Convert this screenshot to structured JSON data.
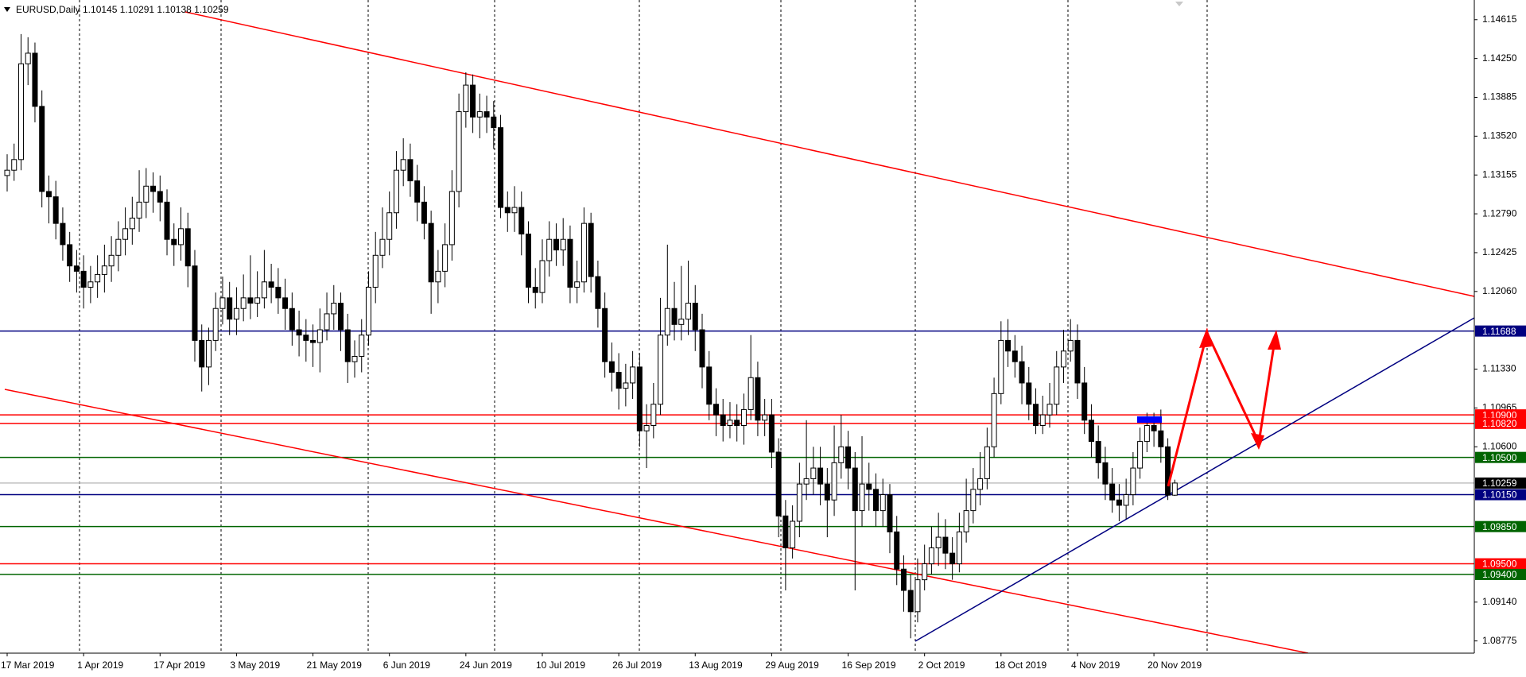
{
  "chart_data": {
    "type": "candlestick",
    "title": "EURUSD,Daily  1.10145 1.10291 1.10138 1.10259",
    "categories": [
      "17 Mar 2019",
      null,
      null,
      null,
      null,
      null,
      null,
      null,
      null,
      null,
      null,
      "1 Apr 2019",
      null,
      null,
      null,
      null,
      null,
      null,
      null,
      null,
      null,
      null,
      "17 Apr 2019",
      null,
      null,
      null,
      null,
      null,
      null,
      null,
      null,
      null,
      null,
      "3 May 2019",
      null,
      null,
      null,
      null,
      null,
      null,
      null,
      null,
      null,
      null,
      "21 May 2019",
      null,
      null,
      null,
      null,
      null,
      null,
      null,
      null,
      null,
      null,
      "6 Jun 2019",
      null,
      null,
      null,
      null,
      null,
      null,
      null,
      null,
      null,
      null,
      "24 Jun 2019",
      null,
      null,
      null,
      null,
      null,
      null,
      null,
      null,
      null,
      null,
      "10 Jul 2019",
      null,
      null,
      null,
      null,
      null,
      null,
      null,
      null,
      null,
      null,
      "26 Jul 2019",
      null,
      null,
      null,
      null,
      null,
      null,
      null,
      null,
      null,
      null,
      "13 Aug 2019",
      null,
      null,
      null,
      null,
      null,
      null,
      null,
      null,
      null,
      null,
      "29 Aug 2019",
      null,
      null,
      null,
      null,
      null,
      null,
      null,
      null,
      null,
      null,
      "16 Sep 2019",
      null,
      null,
      null,
      null,
      null,
      null,
      null,
      null,
      null,
      null,
      "2 Oct 2019",
      null,
      null,
      null,
      null,
      null,
      null,
      null,
      null,
      null,
      null,
      "18 Oct 2019",
      null,
      null,
      null,
      null,
      null,
      null,
      null,
      null,
      null,
      null,
      "4 Nov 2019",
      null,
      null,
      null,
      null,
      null,
      null,
      null,
      null,
      null,
      null,
      "20 Nov 2019",
      null,
      null,
      null
    ],
    "open": [
      1.1315,
      1.132,
      1.133,
      1.142,
      1.143,
      1.138,
      1.13,
      1.1295,
      1.127,
      1.125,
      1.123,
      1.1225,
      1.121,
      1.1215,
      1.1222,
      1.123,
      1.124,
      1.1255,
      1.1265,
      1.1275,
      1.129,
      1.1305,
      1.13,
      1.129,
      1.1255,
      1.125,
      1.1265,
      1.123,
      1.116,
      1.1135,
      1.116,
      1.119,
      1.12,
      1.118,
      1.119,
      1.12,
      1.1195,
      1.12,
      1.1215,
      1.121,
      1.12,
      1.119,
      1.117,
      1.1165,
      1.116,
      1.1158,
      1.117,
      1.1185,
      1.1195,
      1.117,
      1.114,
      1.1145,
      1.1165,
      1.121,
      1.124,
      1.1255,
      1.128,
      1.132,
      1.133,
      1.131,
      1.129,
      1.127,
      1.1215,
      1.1225,
      1.125,
      1.13,
      1.1375,
      1.14,
      1.137,
      1.1375,
      1.137,
      1.136,
      1.1285,
      1.128,
      1.1285,
      1.126,
      1.121,
      1.1205,
      1.1235,
      1.1255,
      1.1245,
      1.1255,
      1.121,
      1.1215,
      1.127,
      1.122,
      1.119,
      1.114,
      1.113,
      1.1115,
      1.112,
      1.1135,
      1.1075,
      1.108,
      1.11,
      1.1165,
      1.119,
      1.1175,
      1.118,
      1.1195,
      1.117,
      1.1135,
      1.11,
      1.109,
      1.108,
      1.1085,
      1.108,
      1.1095,
      1.1125,
      1.1085,
      1.109,
      1.1055,
      1.0995,
      1.0965,
      1.099,
      1.1025,
      1.103,
      1.104,
      1.1025,
      1.101,
      1.1045,
      1.106,
      1.104,
      1.1,
      1.1025,
      1.102,
      1.1,
      1.1015,
      1.098,
      1.0945,
      1.0925,
      1.0905,
      1.0935,
      1.095,
      1.0965,
      1.0975,
      1.096,
      1.095,
      1.098,
      1.1,
      1.102,
      1.103,
      1.106,
      1.111,
      1.116,
      1.115,
      1.114,
      1.112,
      1.11,
      1.108,
      1.109,
      1.11,
      1.1135,
      1.115,
      1.116,
      1.112,
      1.1085,
      1.1065,
      1.1045,
      1.1025,
      1.101,
      1.1005,
      1.1015,
      1.104,
      1.1065,
      1.108,
      1.1075,
      1.106,
      1.10145
    ],
    "high": [
      1.1335,
      1.1345,
      1.1448,
      1.1445,
      1.144,
      1.1395,
      1.1315,
      1.131,
      1.1285,
      1.1262,
      1.1245,
      1.124,
      1.123,
      1.124,
      1.125,
      1.1258,
      1.1272,
      1.1285,
      1.1295,
      1.132,
      1.1322,
      1.1318,
      1.1315,
      1.1302,
      1.127,
      1.1285,
      1.128,
      1.1245,
      1.1175,
      1.1172,
      1.1205,
      1.122,
      1.1215,
      1.121,
      1.1222,
      1.124,
      1.1225,
      1.1245,
      1.1232,
      1.1228,
      1.1218,
      1.1205,
      1.1188,
      1.118,
      1.1175,
      1.119,
      1.1205,
      1.1212,
      1.1205,
      1.1185,
      1.116,
      1.118,
      1.1225,
      1.1262,
      1.1285,
      1.13,
      1.1338,
      1.135,
      1.1345,
      1.1325,
      1.1305,
      1.1282,
      1.1245,
      1.127,
      1.132,
      1.1392,
      1.1412,
      1.141,
      1.1392,
      1.139,
      1.1385,
      1.1372,
      1.13,
      1.1305,
      1.13,
      1.1272,
      1.1228,
      1.1255,
      1.1272,
      1.127,
      1.1275,
      1.1268,
      1.1235,
      1.1285,
      1.128,
      1.1235,
      1.1205,
      1.1158,
      1.1148,
      1.1138,
      1.115,
      1.1148,
      1.11,
      1.112,
      1.12,
      1.125,
      1.1215,
      1.123,
      1.1235,
      1.1212,
      1.1185,
      1.115,
      1.1115,
      1.1105,
      1.1102,
      1.11,
      1.111,
      1.1165,
      1.114,
      1.1105,
      1.1105,
      1.1068,
      1.101,
      1.1005,
      1.1045,
      1.1085,
      1.106,
      1.106,
      1.104,
      1.108,
      1.109,
      1.1075,
      1.1055,
      1.107,
      1.1045,
      1.1035,
      1.103,
      1.1025,
      1.0995,
      1.0958,
      1.094,
      1.0955,
      1.0968,
      1.0985,
      1.0998,
      1.0992,
      1.0975,
      1.0998,
      1.103,
      1.104,
      1.1055,
      1.1078,
      1.1125,
      1.1178,
      1.118,
      1.1165,
      1.1155,
      1.1135,
      1.1115,
      1.1108,
      1.112,
      1.115,
      1.117,
      1.118,
      1.1175,
      1.1135,
      1.11,
      1.108,
      1.106,
      1.104,
      1.1025,
      1.103,
      1.1055,
      1.1078,
      1.1092,
      1.1092,
      1.1095,
      1.1068,
      1.10291
    ],
    "low": [
      1.13,
      1.131,
      1.132,
      1.14,
      1.1365,
      1.1285,
      1.127,
      1.1255,
      1.1235,
      1.1215,
      1.1205,
      1.119,
      1.1195,
      1.12,
      1.1205,
      1.1215,
      1.1225,
      1.124,
      1.125,
      1.1262,
      1.1275,
      1.128,
      1.1272,
      1.124,
      1.123,
      1.1235,
      1.121,
      1.114,
      1.1112,
      1.1118,
      1.115,
      1.1175,
      1.1165,
      1.1165,
      1.1178,
      1.118,
      1.1182,
      1.119,
      1.1195,
      1.1185,
      1.117,
      1.1155,
      1.1145,
      1.114,
      1.1135,
      1.113,
      1.116,
      1.117,
      1.115,
      1.112,
      1.1125,
      1.113,
      1.1155,
      1.1195,
      1.1228,
      1.124,
      1.1265,
      1.1305,
      1.1295,
      1.1272,
      1.1255,
      1.1185,
      1.1195,
      1.121,
      1.1235,
      1.1285,
      1.136,
      1.1355,
      1.135,
      1.1355,
      1.134,
      1.1275,
      1.1262,
      1.1262,
      1.124,
      1.1195,
      1.119,
      1.1195,
      1.122,
      1.123,
      1.123,
      1.1195,
      1.1195,
      1.1205,
      1.1205,
      1.1172,
      1.1125,
      1.1112,
      1.1095,
      1.1098,
      1.1105,
      1.106,
      1.104,
      1.1068,
      1.109,
      1.1155,
      1.116,
      1.116,
      1.1165,
      1.115,
      1.1115,
      1.1085,
      1.107,
      1.1065,
      1.1068,
      1.1065,
      1.1062,
      1.1085,
      1.107,
      1.107,
      1.104,
      1.0975,
      1.0925,
      1.0955,
      1.0975,
      1.101,
      1.1015,
      1.1005,
      1.0975,
      1.0995,
      1.103,
      1.102,
      1.0925,
      1.0985,
      1.1,
      1.0985,
      1.0985,
      1.096,
      1.093,
      1.0905,
      1.088,
      1.0895,
      1.0925,
      1.094,
      1.0948,
      1.0945,
      1.0935,
      1.0942,
      1.097,
      1.0988,
      1.1005,
      1.102,
      1.105,
      1.11,
      1.1135,
      1.1125,
      1.11,
      1.1085,
      1.1072,
      1.1072,
      1.1078,
      1.109,
      1.112,
      1.114,
      1.1105,
      1.1072,
      1.105,
      1.103,
      1.101,
      1.0998,
      1.099,
      1.0992,
      1.1005,
      1.103,
      1.1055,
      1.106,
      1.1045,
      1.101,
      1.10138
    ],
    "close": [
      1.132,
      1.133,
      1.142,
      1.143,
      1.138,
      1.13,
      1.1295,
      1.127,
      1.125,
      1.123,
      1.1225,
      1.121,
      1.1215,
      1.1222,
      1.123,
      1.124,
      1.1255,
      1.1265,
      1.1275,
      1.129,
      1.1305,
      1.13,
      1.129,
      1.1255,
      1.125,
      1.1265,
      1.123,
      1.116,
      1.1135,
      1.116,
      1.119,
      1.12,
      1.118,
      1.119,
      1.12,
      1.1195,
      1.12,
      1.1215,
      1.121,
      1.12,
      1.119,
      1.117,
      1.1165,
      1.116,
      1.1158,
      1.117,
      1.1185,
      1.1195,
      1.117,
      1.114,
      1.1145,
      1.1165,
      1.121,
      1.124,
      1.1255,
      1.128,
      1.132,
      1.133,
      1.131,
      1.129,
      1.127,
      1.1215,
      1.1225,
      1.125,
      1.13,
      1.1375,
      1.14,
      1.137,
      1.1375,
      1.137,
      1.136,
      1.1285,
      1.128,
      1.1285,
      1.126,
      1.121,
      1.1205,
      1.1235,
      1.1255,
      1.1245,
      1.1255,
      1.121,
      1.1215,
      1.127,
      1.122,
      1.119,
      1.114,
      1.113,
      1.1115,
      1.112,
      1.1135,
      1.1075,
      1.108,
      1.11,
      1.1165,
      1.119,
      1.1175,
      1.118,
      1.1195,
      1.117,
      1.1135,
      1.11,
      1.109,
      1.108,
      1.1085,
      1.108,
      1.1095,
      1.1125,
      1.1085,
      1.109,
      1.1055,
      1.0995,
      1.0965,
      1.099,
      1.1025,
      1.103,
      1.104,
      1.1025,
      1.101,
      1.1045,
      1.106,
      1.104,
      1.1,
      1.1025,
      1.102,
      1.1,
      1.1015,
      1.098,
      1.0945,
      1.0925,
      1.0905,
      1.0935,
      1.095,
      1.0965,
      1.0975,
      1.096,
      1.095,
      1.098,
      1.1,
      1.102,
      1.103,
      1.106,
      1.111,
      1.116,
      1.115,
      1.114,
      1.112,
      1.11,
      1.108,
      1.109,
      1.11,
      1.1135,
      1.115,
      1.116,
      1.112,
      1.1085,
      1.1065,
      1.1045,
      1.1025,
      1.101,
      1.1005,
      1.1015,
      1.104,
      1.1065,
      1.108,
      1.1075,
      1.106,
      1.10145,
      1.10259
    ],
    "ylim": [
      1.0866,
      1.148
    ],
    "yticks": [
      1.14615,
      {
        "value": 1.1425,
        "label": "1.14250"
      },
      1.13885,
      {
        "value": 1.1352,
        "label": "1.13520"
      },
      1.13155,
      {
        "value": 1.1279,
        "label": "1.12790"
      },
      1.12425,
      {
        "value": 1.1206,
        "label": "1.12060"
      },
      {
        "value": 1.1133,
        "label": "1.11330"
      },
      1.10965,
      {
        "value": 1.106,
        "label": "1.10600"
      },
      {
        "value": 1.0914,
        "label": "1.09140"
      },
      1.08775
    ],
    "levels": [
      {
        "value": 1.11688,
        "label": "1.11688",
        "color": "#000080",
        "line_color": "#000080"
      },
      {
        "value": 1.109,
        "label": "1.10900",
        "color": "#ff0000",
        "line_color": "#ff0000"
      },
      {
        "value": 1.1082,
        "label": "1.10820",
        "color": "#ff0000",
        "line_color": "#ff0000"
      },
      {
        "value": 1.105,
        "label": "1.10500",
        "color": "#006400",
        "line_color": "#006400"
      },
      {
        "value": 1.10259,
        "label": "1.10259",
        "color": "#000000",
        "line_color": "#c0c0c0"
      },
      {
        "value": 1.1015,
        "label": "1.10150",
        "color": "#000080",
        "line_color": "#000080"
      },
      {
        "value": 1.0985,
        "label": "1.09850",
        "color": "#006400",
        "line_color": "#006400"
      },
      {
        "value": 1.095,
        "label": "1.09500",
        "color": "#ff0000",
        "line_color": "#ff0000"
      },
      {
        "value": 1.094,
        "label": "1.09400",
        "color": "#006400",
        "line_color": "#006400"
      }
    ],
    "up_color": "#ffffff",
    "down_color": "#000000"
  }
}
